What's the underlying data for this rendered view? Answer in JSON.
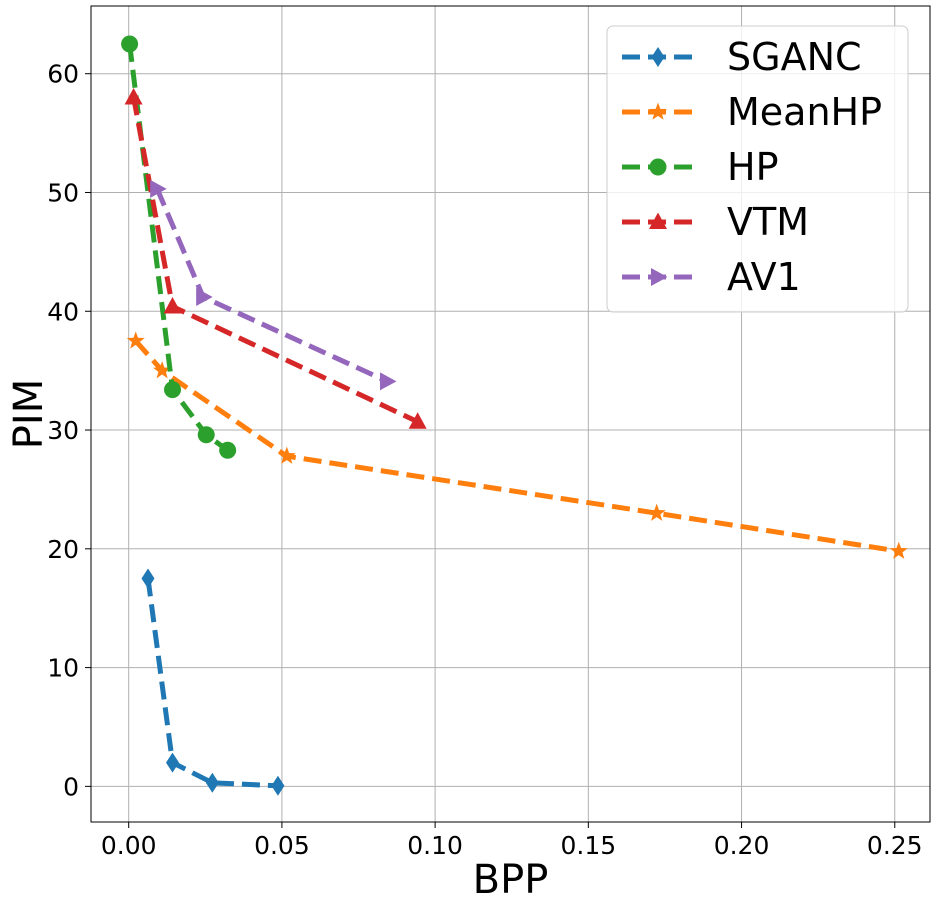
{
  "chart_data": {
    "type": "line",
    "xlabel": "BPP",
    "ylabel": "PIM",
    "xlim": [
      -0.0123,
      0.2615
    ],
    "ylim": [
      -3.0,
      65.7
    ],
    "xticks": [
      0.0,
      0.05,
      0.1,
      0.15,
      0.2,
      0.25
    ],
    "xtick_labels": [
      "0.00",
      "0.05",
      "0.10",
      "0.15",
      "0.20",
      "0.25"
    ],
    "yticks": [
      0,
      10,
      20,
      30,
      40,
      50,
      60
    ],
    "ytick_labels": [
      "0",
      "10",
      "20",
      "30",
      "40",
      "50",
      "60"
    ],
    "grid": true,
    "legend_position": "top-right",
    "series": [
      {
        "name": "SGANC",
        "color": "#1f77b4",
        "marker": "diamond",
        "x": [
          0.0063,
          0.0143,
          0.0273,
          0.0487
        ],
        "y": [
          17.5,
          2.0,
          0.3,
          0.05
        ]
      },
      {
        "name": "MeanHP",
        "color": "#ff7f0e",
        "marker": "star",
        "x": [
          0.0023,
          0.0109,
          0.0516,
          0.1723,
          0.2513
        ],
        "y": [
          37.5,
          35.0,
          27.8,
          23.0,
          19.8
        ]
      },
      {
        "name": "HP",
        "color": "#2ca02c",
        "marker": "circle",
        "x": [
          0.0003,
          0.0143,
          0.0253,
          0.0323
        ],
        "y": [
          62.5,
          33.4,
          29.6,
          28.3
        ]
      },
      {
        "name": "VTM",
        "color": "#d62728",
        "marker": "triangle-up",
        "x": [
          0.0016,
          0.0143,
          0.0943
        ],
        "y": [
          58.0,
          40.4,
          30.7
        ]
      },
      {
        "name": "AV1",
        "color": "#9467bd",
        "marker": "triangle-right",
        "x": [
          0.0093,
          0.0243,
          0.0843
        ],
        "y": [
          50.3,
          41.2,
          34.1
        ]
      }
    ]
  }
}
